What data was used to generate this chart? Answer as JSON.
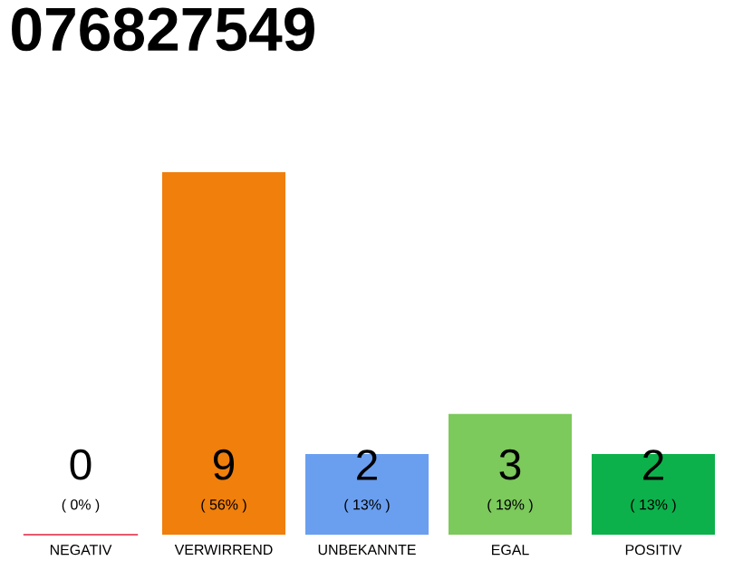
{
  "chart_data": {
    "type": "bar",
    "title": "076827549",
    "categories": [
      "NEGATIV",
      "VERWIRREND",
      "UNBEKANNTE",
      "EGAL",
      "POSITIV"
    ],
    "values": [
      0,
      9,
      2,
      3,
      2
    ],
    "colors": [
      "#e2213a",
      "#f07f0c",
      "#6a9ff0",
      "#7cc95c",
      "#0cb14b"
    ],
    "data_labels": true,
    "annotations": [
      "( 0% )",
      "( 56% )",
      "( 13% )",
      "( 19% )",
      "( 13% )"
    ]
  }
}
